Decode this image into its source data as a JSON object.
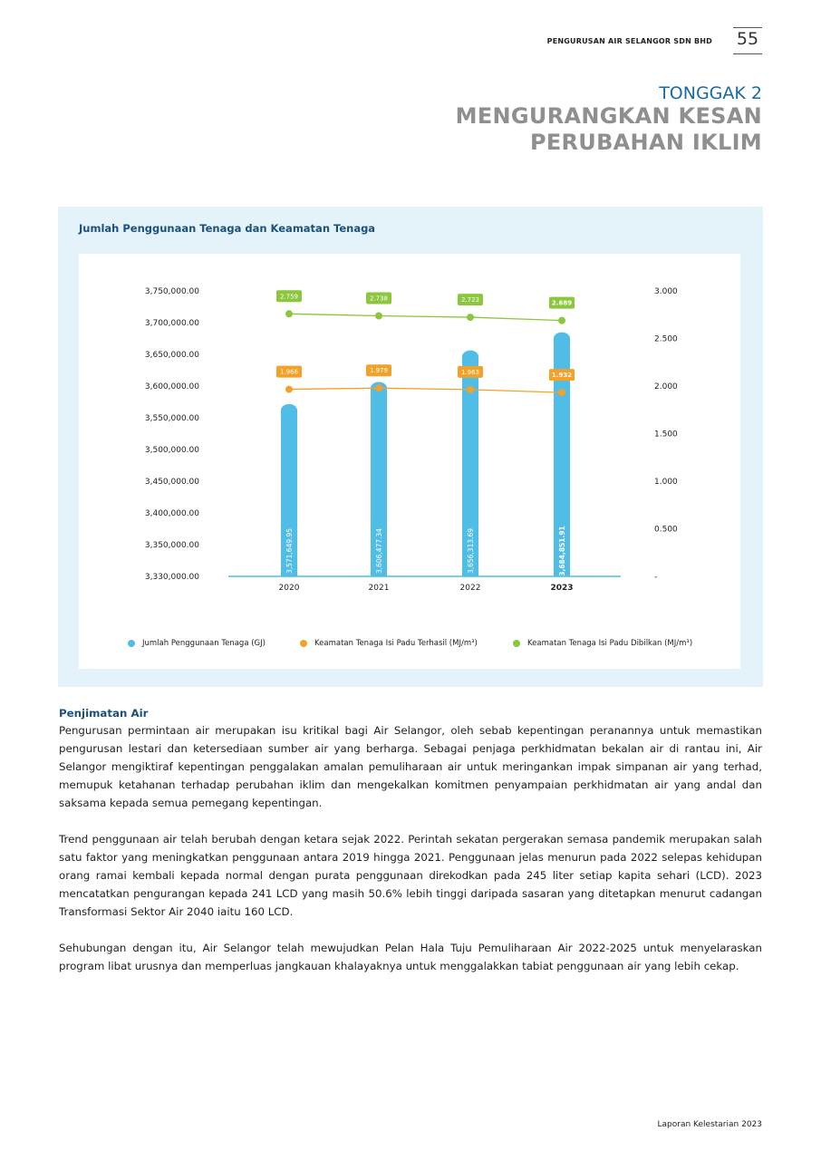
{
  "header": {
    "company": "PENGURUSAN AIR SELANGOR SDN BHD",
    "page_number": "55"
  },
  "title": {
    "pillar": "TONGGAK 2",
    "line1": "MENGURANGKAN KESAN",
    "line2": "PERUBAHAN IKLIM"
  },
  "colors": {
    "bar": "#4fbde6",
    "orange": "#f4a12a",
    "green": "#8cc63f",
    "axis": "#4fbde6",
    "heading": "#1b4f7c"
  },
  "chart_data": {
    "type": "bar+line",
    "title": "Jumlah Penggunaan Tenaga dan Keamatan Tenaga",
    "categories": [
      "2020",
      "2021",
      "2022",
      "2023"
    ],
    "bold_category": "2023",
    "y_left": {
      "ticks": [
        "3,750,000.00",
        "3,700,000.00",
        "3,650,000.00",
        "3,600,000.00",
        "3,550,000.00",
        "3,500,000.00",
        "3,450,000.00",
        "3,400,000.00",
        "3,350,000.00",
        "3,330,000.00"
      ],
      "tick_values": [
        3750000,
        3700000,
        3650000,
        3600000,
        3550000,
        3500000,
        3450000,
        3400000,
        3350000,
        3330000
      ],
      "range": [
        3330000,
        3750000
      ]
    },
    "y_right": {
      "ticks": [
        "3.000",
        "2.500",
        "2.000",
        "1.500",
        "1.000",
        "0.500",
        "-"
      ],
      "tick_values": [
        3.0,
        2.5,
        2.0,
        1.5,
        1.0,
        0.5,
        0
      ],
      "range": [
        0,
        3.0
      ]
    },
    "series": [
      {
        "name": "Jumlah Penggunaan Tenaga (GJ)",
        "type": "bar",
        "axis": "left",
        "values": [
          3571649.95,
          3606477.34,
          3656313.69,
          3684851.91
        ],
        "labels": [
          "3,571,649.95",
          "3,606,477.34",
          "3,656,313.69",
          "3,684,851.91"
        ]
      },
      {
        "name": "Keamatan Tenaga Isi Padu Terhasil (MJ/m³)",
        "type": "line",
        "axis": "right",
        "values": [
          1.966,
          1.979,
          1.963,
          1.932
        ],
        "labels": [
          "1.966",
          "1.979",
          "1.963",
          "1.932"
        ]
      },
      {
        "name": "Keamatan Tenaga Isi Padu Dibilkan (MJ/m³)",
        "type": "line",
        "axis": "right",
        "values": [
          2.759,
          2.738,
          2.723,
          2.689
        ],
        "labels": [
          "2.759",
          "2.738",
          "2.723",
          "2.689"
        ]
      }
    ],
    "legend_position": "bottom"
  },
  "section": {
    "heading": "Penjimatan Air",
    "paragraphs": [
      "Pengurusan permintaan air merupakan isu kritikal bagi Air Selangor, oleh sebab kepentingan peranannya untuk memastikan pengurusan lestari dan ketersediaan sumber air yang berharga. Sebagai penjaga perkhidmatan bekalan air di rantau ini, Air Selangor mengiktiraf kepentingan penggalakan amalan pemuliharaan air untuk meringankan impak simpanan air yang terhad, memupuk ketahanan terhadap perubahan iklim dan mengekalkan komitmen penyampaian perkhidmatan air yang andal dan saksama kepada semua pemegang kepentingan.",
      "Trend penggunaan air telah berubah dengan ketara sejak 2022. Perintah sekatan pergerakan semasa pandemik merupakan salah satu faktor yang meningkatkan penggunaan antara 2019 hingga 2021. Penggunaan jelas menurun pada 2022 selepas kehidupan orang ramai kembali kepada normal dengan purata penggunaan direkodkan pada 245 liter setiap kapita sehari (LCD). 2023 mencatatkan pengurangan kepada 241 LCD yang masih 50.6% lebih tinggi daripada sasaran yang ditetapkan menurut cadangan Transformasi Sektor Air 2040 iaitu 160 LCD.",
      "Sehubungan dengan itu, Air Selangor telah mewujudkan Pelan Hala Tuju Pemuliharaan Air 2022-2025 untuk menyelaraskan program libat urusnya dan memperluas jangkauan khalayaknya untuk menggalakkan tabiat penggunaan air yang lebih cekap."
    ]
  },
  "footer": {
    "text": "Laporan Kelestarian 2023"
  }
}
